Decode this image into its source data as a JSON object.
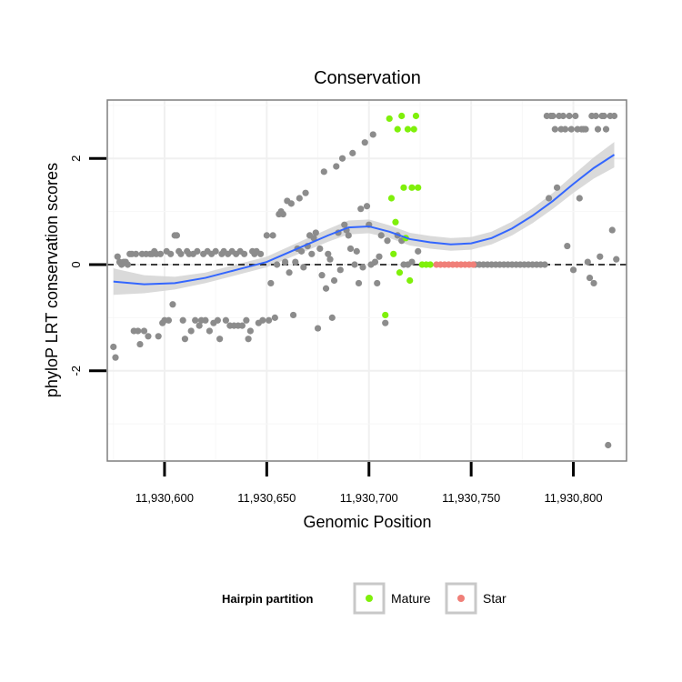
{
  "chart_data": {
    "type": "scatter",
    "title": "Conservation",
    "xlabel": "Genomic Position",
    "ylabel": "phyloP LRT conservation scores",
    "xlim": [
      11930572,
      11930826
    ],
    "ylim": [
      -3.7,
      3.1
    ],
    "x_ticks": [
      11930600,
      11930650,
      11930700,
      11930750,
      11930800
    ],
    "x_tick_labels": [
      "11,930,600",
      "11,930,650",
      "11,930,700",
      "11,930,750",
      "11,930,800"
    ],
    "y_ticks": [
      -2,
      0,
      2
    ],
    "y_tick_labels": [
      "-2",
      "0",
      "2"
    ],
    "grid": true,
    "reference_line": {
      "y": 0,
      "style": "dashed"
    },
    "legend": {
      "title": "Hairpin partition",
      "position": "bottom",
      "entries": [
        {
          "label": "Mature",
          "color": "#7ff00a"
        },
        {
          "label": "Star",
          "color": "#f07f78"
        }
      ]
    },
    "colors": {
      "other": "#8c8c8c",
      "Mature": "#7ff00a",
      "Star": "#f07f78",
      "smooth": "#3366ff",
      "band": "#d3d3d3"
    },
    "series": [
      {
        "name": "Other",
        "points": [
          [
            11930575,
            -1.55
          ],
          [
            11930576,
            -1.75
          ],
          [
            11930577,
            0.15
          ],
          [
            11930578,
            0.05
          ],
          [
            11930579,
            0.0
          ],
          [
            11930580,
            0.05
          ],
          [
            11930581,
            0.05
          ],
          [
            11930582,
            0.0
          ],
          [
            11930583,
            0.2
          ],
          [
            11930584,
            0.2
          ],
          [
            11930585,
            -1.25
          ],
          [
            11930586,
            0.2
          ],
          [
            11930587,
            -1.25
          ],
          [
            11930588,
            -1.5
          ],
          [
            11930589,
            0.2
          ],
          [
            11930590,
            -1.25
          ],
          [
            11930591,
            0.2
          ],
          [
            11930592,
            -1.35
          ],
          [
            11930593,
            0.2
          ],
          [
            11930594,
            0.2
          ],
          [
            11930595,
            0.25
          ],
          [
            11930596,
            0.2
          ],
          [
            11930597,
            -1.35
          ],
          [
            11930598,
            0.2
          ],
          [
            11930599,
            -1.1
          ],
          [
            11930600,
            -1.05
          ],
          [
            11930601,
            0.25
          ],
          [
            11930602,
            -1.05
          ],
          [
            11930603,
            0.2
          ],
          [
            11930604,
            -0.75
          ],
          [
            11930605,
            0.55
          ],
          [
            11930606,
            0.55
          ],
          [
            11930607,
            0.25
          ],
          [
            11930608,
            0.2
          ],
          [
            11930609,
            -1.05
          ],
          [
            11930610,
            -1.4
          ],
          [
            11930611,
            0.25
          ],
          [
            11930612,
            0.2
          ],
          [
            11930613,
            -1.25
          ],
          [
            11930614,
            0.2
          ],
          [
            11930615,
            -1.05
          ],
          [
            11930616,
            0.25
          ],
          [
            11930617,
            -1.15
          ],
          [
            11930618,
            -1.05
          ],
          [
            11930619,
            0.2
          ],
          [
            11930620,
            -1.05
          ],
          [
            11930621,
            0.25
          ],
          [
            11930622,
            -1.25
          ],
          [
            11930623,
            0.2
          ],
          [
            11930624,
            -1.1
          ],
          [
            11930625,
            0.25
          ],
          [
            11930626,
            -1.05
          ],
          [
            11930627,
            -1.4
          ],
          [
            11930628,
            0.2
          ],
          [
            11930629,
            0.25
          ],
          [
            11930630,
            -1.05
          ],
          [
            11930631,
            0.2
          ],
          [
            11930632,
            -1.15
          ],
          [
            11930633,
            0.25
          ],
          [
            11930634,
            -1.15
          ],
          [
            11930635,
            0.2
          ],
          [
            11930636,
            -1.15
          ],
          [
            11930637,
            0.25
          ],
          [
            11930638,
            -1.15
          ],
          [
            11930639,
            0.2
          ],
          [
            11930640,
            -1.05
          ],
          [
            11930641,
            -1.4
          ],
          [
            11930642,
            -1.25
          ],
          [
            11930643,
            0.25
          ],
          [
            11930644,
            0.2
          ],
          [
            11930645,
            0.25
          ],
          [
            11930646,
            -1.1
          ],
          [
            11930647,
            0.2
          ],
          [
            11930648,
            -1.05
          ],
          [
            11930650,
            0.55
          ],
          [
            11930651,
            -1.05
          ],
          [
            11930652,
            -0.35
          ],
          [
            11930653,
            0.55
          ],
          [
            11930654,
            -1.0
          ],
          [
            11930655,
            0.0
          ],
          [
            11930656,
            0.95
          ],
          [
            11930657,
            1.0
          ],
          [
            11930658,
            0.95
          ],
          [
            11930659,
            0.05
          ],
          [
            11930660,
            1.2
          ],
          [
            11930661,
            -0.15
          ],
          [
            11930662,
            1.15
          ],
          [
            11930663,
            -0.95
          ],
          [
            11930664,
            0.05
          ],
          [
            11930665,
            0.3
          ],
          [
            11930666,
            1.25
          ],
          [
            11930667,
            0.25
          ],
          [
            11930668,
            -0.05
          ],
          [
            11930669,
            1.35
          ],
          [
            11930670,
            0.35
          ],
          [
            11930671,
            0.55
          ],
          [
            11930672,
            0.2
          ],
          [
            11930673,
            0.5
          ],
          [
            11930674,
            0.6
          ],
          [
            11930675,
            -1.2
          ],
          [
            11930676,
            0.3
          ],
          [
            11930677,
            -0.2
          ],
          [
            11930678,
            1.75
          ],
          [
            11930679,
            -0.45
          ],
          [
            11930680,
            0.2
          ],
          [
            11930681,
            0.1
          ],
          [
            11930682,
            -1.0
          ],
          [
            11930683,
            -0.3
          ],
          [
            11930684,
            1.85
          ],
          [
            11930685,
            0.6
          ],
          [
            11930686,
            -0.1
          ],
          [
            11930687,
            2.0
          ],
          [
            11930688,
            0.75
          ],
          [
            11930689,
            0.65
          ],
          [
            11930690,
            0.55
          ],
          [
            11930691,
            0.3
          ],
          [
            11930692,
            2.1
          ],
          [
            11930693,
            0.0
          ],
          [
            11930694,
            0.25
          ],
          [
            11930695,
            -0.35
          ],
          [
            11930696,
            1.05
          ],
          [
            11930697,
            -0.05
          ],
          [
            11930698,
            2.3
          ],
          [
            11930699,
            1.1
          ],
          [
            11930700,
            0.75
          ],
          [
            11930701,
            0.0
          ],
          [
            11930702,
            2.45
          ],
          [
            11930703,
            0.05
          ],
          [
            11930704,
            -0.35
          ],
          [
            11930705,
            0.15
          ],
          [
            11930706,
            0.55
          ],
          [
            11930708,
            -1.1
          ],
          [
            11930709,
            0.45
          ],
          [
            11930714,
            0.55
          ],
          [
            11930716,
            0.45
          ],
          [
            11930717,
            0.0
          ],
          [
            11930719,
            0.0
          ],
          [
            11930721,
            0.05
          ],
          [
            11930724,
            0.25
          ],
          [
            11930752,
            0.0
          ],
          [
            11930754,
            0.0
          ],
          [
            11930756,
            0.0
          ],
          [
            11930758,
            0.0
          ],
          [
            11930760,
            0.0
          ],
          [
            11930762,
            0.0
          ],
          [
            11930764,
            0.0
          ],
          [
            11930766,
            0.0
          ],
          [
            11930768,
            0.0
          ],
          [
            11930770,
            0.0
          ],
          [
            11930772,
            0.0
          ],
          [
            11930774,
            0.0
          ],
          [
            11930776,
            0.0
          ],
          [
            11930778,
            0.0
          ],
          [
            11930780,
            0.0
          ],
          [
            11930782,
            0.0
          ],
          [
            11930784,
            0.0
          ],
          [
            11930786,
            0.0
          ],
          [
            11930787,
            2.8
          ],
          [
            11930788,
            1.25
          ],
          [
            11930789,
            2.8
          ],
          [
            11930790,
            2.8
          ],
          [
            11930791,
            2.55
          ],
          [
            11930792,
            1.45
          ],
          [
            11930793,
            2.8
          ],
          [
            11930794,
            2.55
          ],
          [
            11930795,
            2.8
          ],
          [
            11930796,
            2.55
          ],
          [
            11930797,
            0.35
          ],
          [
            11930798,
            2.8
          ],
          [
            11930799,
            2.55
          ],
          [
            11930800,
            -0.1
          ],
          [
            11930801,
            2.8
          ],
          [
            11930802,
            2.55
          ],
          [
            11930803,
            1.25
          ],
          [
            11930804,
            2.55
          ],
          [
            11930805,
            2.55
          ],
          [
            11930806,
            2.55
          ],
          [
            11930807,
            0.05
          ],
          [
            11930808,
            -0.25
          ],
          [
            11930809,
            2.8
          ],
          [
            11930810,
            -0.35
          ],
          [
            11930811,
            2.8
          ],
          [
            11930812,
            2.55
          ],
          [
            11930813,
            0.15
          ],
          [
            11930814,
            2.8
          ],
          [
            11930815,
            2.8
          ],
          [
            11930816,
            2.55
          ],
          [
            11930817,
            -3.4
          ],
          [
            11930818,
            2.8
          ],
          [
            11930819,
            0.65
          ],
          [
            11930820,
            2.8
          ],
          [
            11930821,
            0.1
          ]
        ]
      },
      {
        "name": "Mature",
        "points": [
          [
            11930708,
            -0.95
          ],
          [
            11930710,
            2.75
          ],
          [
            11930711,
            1.25
          ],
          [
            11930712,
            0.2
          ],
          [
            11930713,
            0.8
          ],
          [
            11930714,
            2.55
          ],
          [
            11930715,
            -0.15
          ],
          [
            11930716,
            2.8
          ],
          [
            11930717,
            1.45
          ],
          [
            11930718,
            0.5
          ],
          [
            11930719,
            2.55
          ],
          [
            11930720,
            -0.3
          ],
          [
            11930721,
            1.45
          ],
          [
            11930722,
            2.55
          ],
          [
            11930723,
            2.8
          ],
          [
            11930724,
            1.45
          ],
          [
            11930726,
            0.0
          ],
          [
            11930728,
            0.0
          ],
          [
            11930730,
            0.0
          ]
        ]
      },
      {
        "name": "Star",
        "points": [
          [
            11930733,
            0.0
          ],
          [
            11930735,
            0.0
          ],
          [
            11930737,
            0.0
          ],
          [
            11930739,
            0.0
          ],
          [
            11930741,
            0.0
          ],
          [
            11930743,
            0.0
          ],
          [
            11930745,
            0.0
          ],
          [
            11930747,
            0.0
          ],
          [
            11930749,
            0.0
          ],
          [
            11930751,
            0.0
          ]
        ]
      }
    ],
    "smooth": [
      [
        11930575,
        -0.32,
        0.25
      ],
      [
        11930590,
        -0.37,
        0.17
      ],
      [
        11930605,
        -0.35,
        0.12
      ],
      [
        11930620,
        -0.25,
        0.1
      ],
      [
        11930635,
        -0.1,
        0.1
      ],
      [
        11930650,
        0.05,
        0.1
      ],
      [
        11930665,
        0.3,
        0.11
      ],
      [
        11930680,
        0.55,
        0.12
      ],
      [
        11930690,
        0.7,
        0.13
      ],
      [
        11930700,
        0.72,
        0.13
      ],
      [
        11930710,
        0.62,
        0.12
      ],
      [
        11930720,
        0.48,
        0.12
      ],
      [
        11930730,
        0.42,
        0.12
      ],
      [
        11930740,
        0.38,
        0.12
      ],
      [
        11930750,
        0.4,
        0.12
      ],
      [
        11930760,
        0.5,
        0.12
      ],
      [
        11930770,
        0.68,
        0.13
      ],
      [
        11930780,
        0.92,
        0.14
      ],
      [
        11930790,
        1.2,
        0.15
      ],
      [
        11930800,
        1.52,
        0.17
      ],
      [
        11930810,
        1.82,
        0.2
      ],
      [
        11930820,
        2.07,
        0.24
      ]
    ]
  }
}
